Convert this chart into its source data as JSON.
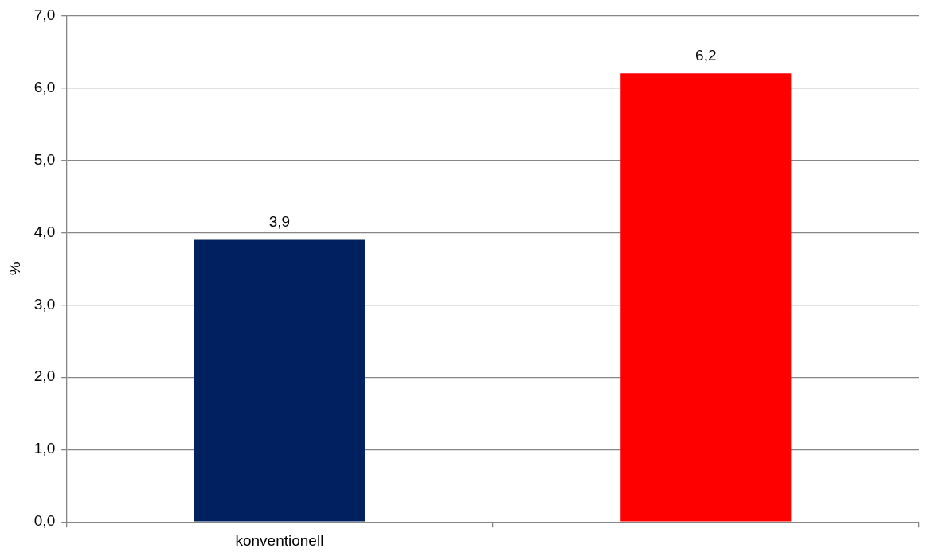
{
  "chart_data": {
    "type": "bar",
    "ylabel": "%",
    "categories": [
      "konventionell",
      null
    ],
    "values": [
      3.9,
      6.2
    ],
    "colors": [
      "#002060",
      "#ff0000"
    ],
    "value_labels": [
      "3,9",
      "6,2"
    ],
    "ylim": [
      0,
      7
    ],
    "yticks": [
      {
        "value": 0,
        "label": "0,0"
      },
      {
        "value": 1,
        "label": "1,0"
      },
      {
        "value": 2,
        "label": "2,0"
      },
      {
        "value": 3,
        "label": "3,0"
      },
      {
        "value": 4,
        "label": "4,0"
      },
      {
        "value": 5,
        "label": "5,0"
      },
      {
        "value": 6,
        "label": "6,0"
      },
      {
        "value": 7,
        "label": "7,0"
      }
    ],
    "grid": "y",
    "legend": false
  }
}
